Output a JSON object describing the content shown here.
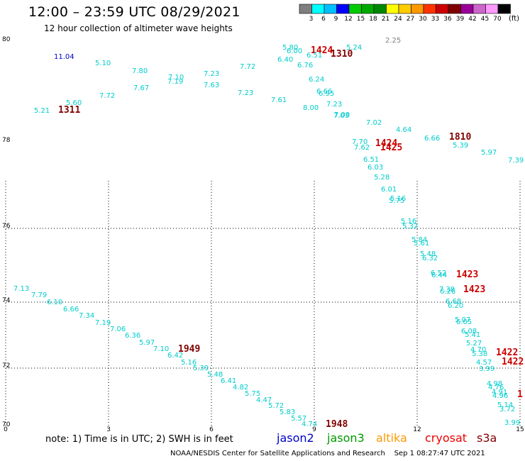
{
  "header": {
    "title": "12:00 – 23:59 UTC 08/29/2021",
    "subtitle": "12 hour collection of altimeter wave heights"
  },
  "colorbar": {
    "unit": "(ft)",
    "bins": [
      {
        "label": "3",
        "color": "#7f7f7f"
      },
      {
        "label": "6",
        "color": "#00ffff"
      },
      {
        "label": "9",
        "color": "#00bfff"
      },
      {
        "label": "12",
        "color": "#0000ff"
      },
      {
        "label": "15",
        "color": "#00cc00"
      },
      {
        "label": "18",
        "color": "#00aa00"
      },
      {
        "label": "21",
        "color": "#008800"
      },
      {
        "label": "24",
        "color": "#ffff00"
      },
      {
        "label": "27",
        "color": "#ffcc00"
      },
      {
        "label": "30",
        "color": "#ff9900"
      },
      {
        "label": "33",
        "color": "#ff3300"
      },
      {
        "label": "36",
        "color": "#cc0000"
      },
      {
        "label": "39",
        "color": "#800000"
      },
      {
        "label": "42",
        "color": "#990099"
      },
      {
        "label": "45",
        "color": "#cc66cc"
      },
      {
        "label": "70",
        "color": "#ff99ff"
      },
      {
        "label": "",
        "color": "#000000"
      }
    ]
  },
  "axes": {
    "x_ticks": [
      "0",
      "3",
      "6",
      "9",
      "12",
      "15"
    ],
    "y_ticks": [
      "80",
      "78",
      "76",
      "74",
      "72",
      "70"
    ]
  },
  "observations": [
    {
      "text": "11.04",
      "color": "#0000cc"
    },
    {
      "text": "5.10",
      "color": "#00cccc"
    },
    {
      "text": "7.80",
      "color": "#00cccc"
    },
    {
      "text": "7.10",
      "color": "#00cccc"
    },
    {
      "text": "7.19",
      "color": "#00cccc"
    },
    {
      "text": "7.23",
      "color": "#00cccc"
    },
    {
      "text": "7.72",
      "color": "#00cccc"
    },
    {
      "text": "7.67",
      "color": "#00cccc"
    },
    {
      "text": "7.63",
      "color": "#00cccc"
    },
    {
      "text": "7.72",
      "color": "#00cccc"
    },
    {
      "text": "5.60",
      "color": "#00cccc"
    },
    {
      "text": "5.21",
      "color": "#00cccc"
    },
    {
      "text": "1311",
      "color": "#800000"
    },
    {
      "text": "7.23",
      "color": "#00cccc"
    },
    {
      "text": "7.61",
      "color": "#00cccc"
    },
    {
      "text": "5.80",
      "color": "#00cccc"
    },
    {
      "text": "6.00",
      "color": "#00cccc"
    },
    {
      "text": "6.40",
      "color": "#00cccc"
    },
    {
      "text": "1424",
      "color": "#cc0000"
    },
    {
      "text": "6.51",
      "color": "#00cccc"
    },
    {
      "text": "1310",
      "color": "#800000"
    },
    {
      "text": "5.24",
      "color": "#00cccc"
    },
    {
      "text": "2.25",
      "color": "#7f7f7f"
    },
    {
      "text": "6.76",
      "color": "#00cccc"
    },
    {
      "text": "6.24",
      "color": "#00cccc"
    },
    {
      "text": "6.66",
      "color": "#00cccc"
    },
    {
      "text": "6.95",
      "color": "#00cccc"
    },
    {
      "text": "8.00",
      "color": "#00cccc"
    },
    {
      "text": "7.23",
      "color": "#00cccc"
    },
    {
      "text": "7.00",
      "color": "#00cccc"
    },
    {
      "text": "7.03",
      "color": "#00cccc"
    },
    {
      "text": "7.02",
      "color": "#00cccc"
    },
    {
      "text": "4.64",
      "color": "#00cccc"
    },
    {
      "text": "6.66",
      "color": "#00cccc"
    },
    {
      "text": "1810",
      "color": "#800000"
    },
    {
      "text": "5.39",
      "color": "#00cccc"
    },
    {
      "text": "5.97",
      "color": "#00cccc"
    },
    {
      "text": "7.39",
      "color": "#00cccc"
    },
    {
      "text": "7.70",
      "color": "#00cccc"
    },
    {
      "text": "7.62",
      "color": "#00cccc"
    },
    {
      "text": "1424",
      "color": "#cc0000"
    },
    {
      "text": "1425",
      "color": "#cc0000"
    },
    {
      "text": "6.51",
      "color": "#00cccc"
    },
    {
      "text": "6.03",
      "color": "#00cccc"
    },
    {
      "text": "5.28",
      "color": "#00cccc"
    },
    {
      "text": "6.01",
      "color": "#00cccc"
    },
    {
      "text": "5.16",
      "color": "#00cccc"
    },
    {
      "text": "5.75",
      "color": "#00cccc"
    },
    {
      "text": "5.16",
      "color": "#00cccc"
    },
    {
      "text": "5.32",
      "color": "#00cccc"
    },
    {
      "text": "5.84",
      "color": "#00cccc"
    },
    {
      "text": "5.61",
      "color": "#00cccc"
    },
    {
      "text": "5.48",
      "color": "#00cccc"
    },
    {
      "text": "6.32",
      "color": "#00cccc"
    },
    {
      "text": "6.52",
      "color": "#00cccc"
    },
    {
      "text": "6.44",
      "color": "#00cccc"
    },
    {
      "text": "1423",
      "color": "#cc0000"
    },
    {
      "text": "7.38",
      "color": "#00cccc"
    },
    {
      "text": "6.26",
      "color": "#00cccc"
    },
    {
      "text": "1423",
      "color": "#cc0000"
    },
    {
      "text": "6.68",
      "color": "#00cccc"
    },
    {
      "text": "6.20",
      "color": "#00cccc"
    },
    {
      "text": "5.07",
      "color": "#00cccc"
    },
    {
      "text": "6.05",
      "color": "#00cccc"
    },
    {
      "text": "6.08",
      "color": "#00cccc"
    },
    {
      "text": "5.41",
      "color": "#00cccc"
    },
    {
      "text": "5.27",
      "color": "#00cccc"
    },
    {
      "text": "4.70",
      "color": "#00cccc"
    },
    {
      "text": "5.38",
      "color": "#00cccc"
    },
    {
      "text": "1422",
      "color": "#cc0000"
    },
    {
      "text": "4.57",
      "color": "#00cccc"
    },
    {
      "text": "3.99",
      "color": "#00cccc"
    },
    {
      "text": "1422",
      "color": "#cc0000"
    },
    {
      "text": "4.98",
      "color": "#00cccc"
    },
    {
      "text": "4.76",
      "color": "#00cccc"
    },
    {
      "text": "4.91",
      "color": "#00cccc"
    },
    {
      "text": "4.96",
      "color": "#00cccc"
    },
    {
      "text": "5.14",
      "color": "#00cccc"
    },
    {
      "text": "3.72",
      "color": "#00cccc"
    },
    {
      "text": "3.99",
      "color": "#00cccc"
    },
    {
      "text": "1",
      "color": "#cc0000"
    },
    {
      "text": "7.13",
      "color": "#00cccc"
    },
    {
      "text": "7.79",
      "color": "#00cccc"
    },
    {
      "text": "6.10",
      "color": "#00cccc"
    },
    {
      "text": "6.66",
      "color": "#00cccc"
    },
    {
      "text": "7.34",
      "color": "#00cccc"
    },
    {
      "text": "7.19",
      "color": "#00cccc"
    },
    {
      "text": "7.06",
      "color": "#00cccc"
    },
    {
      "text": "6.36",
      "color": "#00cccc"
    },
    {
      "text": "5.97",
      "color": "#00cccc"
    },
    {
      "text": "7.10",
      "color": "#00cccc"
    },
    {
      "text": "1949",
      "color": "#800000"
    },
    {
      "text": "6.42",
      "color": "#00cccc"
    },
    {
      "text": "5.16",
      "color": "#00cccc"
    },
    {
      "text": "5.39",
      "color": "#00cccc"
    },
    {
      "text": "5.48",
      "color": "#00cccc"
    },
    {
      "text": "6.41",
      "color": "#00cccc"
    },
    {
      "text": "4.82",
      "color": "#00cccc"
    },
    {
      "text": "5.75",
      "color": "#00cccc"
    },
    {
      "text": "4.47",
      "color": "#00cccc"
    },
    {
      "text": "5.72",
      "color": "#00cccc"
    },
    {
      "text": "5.83",
      "color": "#00cccc"
    },
    {
      "text": "5.57",
      "color": "#00cccc"
    },
    {
      "text": "4.74",
      "color": "#00cccc"
    },
    {
      "text": "1948",
      "color": "#800000"
    }
  ],
  "legend": {
    "note": "note:  1) Time is in UTC;  2) SWH is in feet",
    "satellites": [
      {
        "name": "jason2",
        "color": "#0000cc"
      },
      {
        "name": "jason3",
        "color": "#009900"
      },
      {
        "name": "altika",
        "color": "#ff9900"
      },
      {
        "name": "cryosat",
        "color": "#ee0000"
      },
      {
        "name": "s3a",
        "color": "#800000"
      }
    ]
  },
  "footer": {
    "credit": "NOAA/NESDIS Center for Satellite Applications and Research",
    "timestamp": "Sep  1 08:27:47 UTC 2021"
  }
}
